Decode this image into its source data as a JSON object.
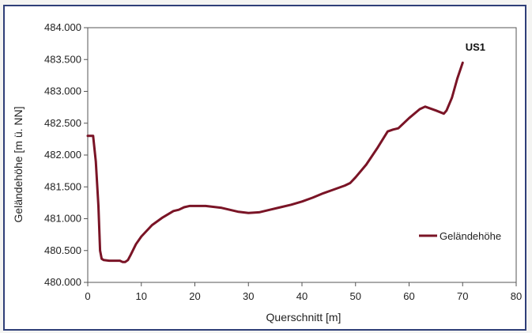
{
  "chart_data": {
    "type": "line",
    "annotation": "US1",
    "xlabel": "Querschnitt [m]",
    "ylabel": "Geländehöhe [m ü. NN]",
    "xlim": [
      0,
      80
    ],
    "ylim": [
      480.0,
      484.0
    ],
    "x_ticks": [
      0,
      10,
      20,
      30,
      40,
      50,
      60,
      70,
      80
    ],
    "x_tick_labels": [
      "0",
      "10",
      "20",
      "30",
      "40",
      "50",
      "60",
      "70",
      "80"
    ],
    "y_ticks": [
      480.0,
      480.5,
      481.0,
      481.5,
      482.0,
      482.5,
      483.0,
      483.5,
      484.0
    ],
    "y_tick_labels": [
      "480.000",
      "480.500",
      "481.000",
      "481.500",
      "482.000",
      "482.500",
      "483.000",
      "483.500",
      "484.000"
    ],
    "grid": false,
    "legend_position": "right",
    "series": [
      {
        "name": "Geländehöhe",
        "color": "#7a1426",
        "x": [
          0,
          1,
          1.5,
          2,
          2.3,
          2.6,
          3,
          4,
          5,
          6,
          6.5,
          7,
          7.5,
          8,
          9,
          10,
          12,
          14,
          16,
          17,
          18,
          19,
          20,
          22,
          25,
          28,
          30,
          32,
          34,
          36,
          38,
          40,
          42,
          44,
          46,
          48,
          49,
          50,
          52,
          54,
          56,
          57,
          58,
          60,
          62,
          63,
          65,
          66.5,
          67,
          68,
          69,
          70
        ],
        "y": [
          482.3,
          482.3,
          481.9,
          481.2,
          480.5,
          480.37,
          480.35,
          480.34,
          480.34,
          480.34,
          480.32,
          480.32,
          480.35,
          480.43,
          480.6,
          480.72,
          480.9,
          481.02,
          481.12,
          481.14,
          481.18,
          481.2,
          481.2,
          481.2,
          481.17,
          481.11,
          481.09,
          481.1,
          481.14,
          481.18,
          481.22,
          481.27,
          481.33,
          481.4,
          481.46,
          481.52,
          481.56,
          481.65,
          481.85,
          482.1,
          482.37,
          482.4,
          482.42,
          482.58,
          482.72,
          482.76,
          482.7,
          482.65,
          482.7,
          482.9,
          483.2,
          483.45
        ]
      }
    ]
  }
}
